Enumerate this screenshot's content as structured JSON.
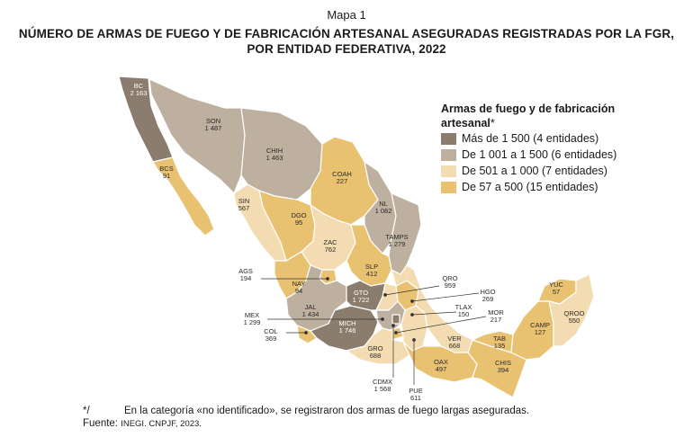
{
  "header": {
    "map_label": "Mapa 1",
    "title_line1": "NÚMERO DE ARMAS DE FUEGO Y DE FABRICACIÓN ARTESANAL ASEGURADAS REGISTRADAS POR LA FGR,",
    "title_line2": "POR ENTIDAD FEDERATIVA, 2022"
  },
  "legend": {
    "title_line1": "Armas de fuego y de fabricación",
    "title_line2": "artesanal",
    "title_mark": "*",
    "items": [
      {
        "label": "Más de 1 500 (4 entidades)",
        "color": "#8b7d6e"
      },
      {
        "label": "De 1 001 a 1 500 (6 entidades)",
        "color": "#bdb09e"
      },
      {
        "label": "De 501 a 1 000 (7 entidades)",
        "color": "#f3dcb1"
      },
      {
        "label": "De 57 a 500 (15 entidades)",
        "color": "#e9c271"
      }
    ]
  },
  "states": {
    "BC": {
      "name": "BC",
      "value": "2 163"
    },
    "SON": {
      "name": "SON",
      "value": "1 487"
    },
    "CHIH": {
      "name": "CHIH",
      "value": "1 463"
    },
    "COAH": {
      "name": "COAH",
      "value": "227"
    },
    "BCS": {
      "name": "BCS",
      "value": "91"
    },
    "SIN": {
      "name": "SIN",
      "value": "567"
    },
    "DGO": {
      "name": "DGO",
      "value": "95"
    },
    "NL": {
      "name": "NL",
      "value": "1 082"
    },
    "TAMPS": {
      "name": "TAMPS",
      "value": "1 279"
    },
    "ZAC": {
      "name": "ZAC",
      "value": "762"
    },
    "SLP": {
      "name": "SLP",
      "value": "412"
    },
    "AGS": {
      "name": "AGS",
      "value": "194"
    },
    "NAY": {
      "name": "NAY",
      "value": "94"
    },
    "QRO": {
      "name": "QRO",
      "value": "959"
    },
    "GTO": {
      "name": "GTO",
      "value": "1 722"
    },
    "HGO": {
      "name": "HGO",
      "value": "269"
    },
    "JAL": {
      "name": "JAL",
      "value": "1 434"
    },
    "TLAX": {
      "name": "TLAX",
      "value": "150"
    },
    "MEX": {
      "name": "MEX",
      "value": "1 299"
    },
    "MOR": {
      "name": "MOR",
      "value": "217"
    },
    "MICH": {
      "name": "MICH",
      "value": "1 746"
    },
    "COL": {
      "name": "COL",
      "value": "369"
    },
    "VER": {
      "name": "VER",
      "value": "668"
    },
    "GRO": {
      "name": "GRO",
      "value": "688"
    },
    "TAB": {
      "name": "TAB",
      "value": "135"
    },
    "YUC": {
      "name": "YUC",
      "value": "57"
    },
    "CAMP": {
      "name": "CAMP",
      "value": "127"
    },
    "QROO": {
      "name": "QROO",
      "value": "550"
    },
    "OAX": {
      "name": "OAX",
      "value": "497"
    },
    "CHIS": {
      "name": "CHIS",
      "value": "394"
    },
    "CDMX": {
      "name": "CDMX",
      "value": "1 568"
    },
    "PUE": {
      "name": "PUE",
      "value": "611"
    }
  },
  "footnote": {
    "mark": "*/",
    "text": "En la categoría «no identificado», se registraron dos armas de fuego largas aseguradas."
  },
  "source": {
    "label": "Fuente:",
    "text": "INEGI. CNPJF, 2023."
  }
}
